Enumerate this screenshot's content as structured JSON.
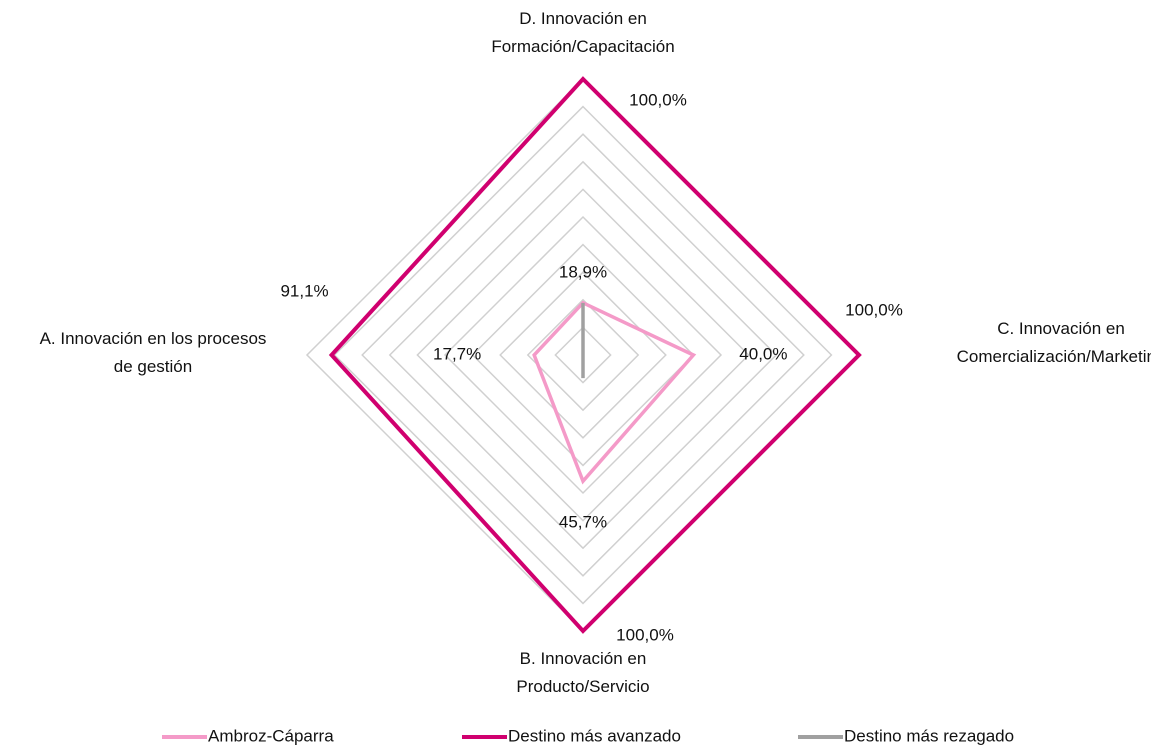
{
  "chart_data": {
    "type": "radar",
    "categories": [
      "D. Innovación en Formación/Capacitación",
      "C. Innovación en Comercialización/Marketing",
      "B. Innovación en Producto/Servicio",
      "A. Innovación en los procesos de gestión"
    ],
    "series": [
      {
        "name": "Ambroz-Cáparra",
        "color": "#f49ac8",
        "values": [
          18.9,
          40.0,
          45.7,
          17.7
        ],
        "value_labels": [
          "18,9%",
          "40,0%",
          "45,7%",
          "17,7%"
        ]
      },
      {
        "name": "Destino más avanzado",
        "color": "#d0006f",
        "values": [
          100,
          100,
          100,
          91.1
        ],
        "value_labels": [
          "100,0%",
          "100,0%",
          "100,0%",
          "91,1%"
        ]
      },
      {
        "name": "Destino más rezagado",
        "color": "#a0a0a0",
        "values": [
          18.9,
          0,
          8.4,
          0
        ]
      }
    ],
    "rlim": [
      0,
      100
    ],
    "rticks": [
      0,
      10,
      20,
      30,
      40,
      50,
      60,
      70,
      80,
      90,
      100
    ],
    "grid": true,
    "legend": "bottom"
  }
}
